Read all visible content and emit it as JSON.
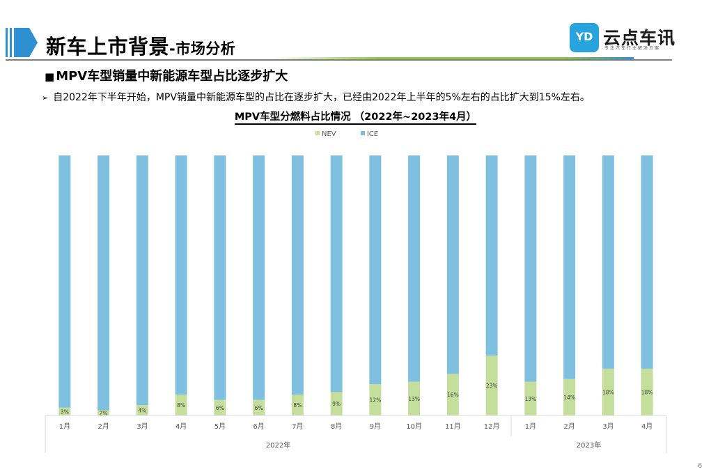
{
  "header": {
    "title_main": "新车上市背景",
    "title_sub": "-市场分析",
    "logo_mark": "YD",
    "logo_name": "云点车讯",
    "logo_slogan": "专注汽车行业解决方案"
  },
  "section": {
    "heading_marker": "■",
    "heading": "MPV车型销量中新能源车型占比逐步扩大",
    "bullet_marker": "➢",
    "bullet": "自2022年下半年开始，MPV销量中新能源车型的占比在逐步扩大，已经由2022年上半年的5%左右的占比扩大到15%左右。"
  },
  "colors": {
    "nev": "#c4df9b",
    "ice": "#7fbfe0",
    "title_marker": "#2e8fd1"
  },
  "chart_data": {
    "type": "bar",
    "stacked": "percent",
    "title": "MPV车型分燃料占比情况 （2022年~2023年4月）",
    "legend_position": "top",
    "grid": false,
    "ylim": [
      0,
      100
    ],
    "categories": [
      "1月",
      "2月",
      "3月",
      "4月",
      "5月",
      "6月",
      "7月",
      "8月",
      "9月",
      "10月",
      "11月",
      "12月",
      "1月",
      "2月",
      "3月",
      "4月"
    ],
    "groups": [
      {
        "label": "2022年",
        "count": 12
      },
      {
        "label": "2023年",
        "count": 4
      }
    ],
    "series": [
      {
        "name": "NEV",
        "values": [
          3,
          2,
          4,
          8,
          6,
          6,
          8,
          9,
          12,
          13,
          16,
          23,
          13,
          14,
          18,
          18
        ]
      },
      {
        "name": "ICE",
        "values": [
          97,
          98,
          96,
          92,
          94,
          94,
          92,
          91,
          88,
          87,
          84,
          77,
          87,
          86,
          82,
          82
        ]
      }
    ],
    "data_labels": [
      "3%",
      "2%",
      "4%",
      "8%",
      "6%",
      "6%",
      "8%",
      "9%",
      "12%",
      "13%",
      "16%",
      "23%",
      "13%",
      "14%",
      "18%",
      "18%"
    ]
  },
  "page_number": "6"
}
